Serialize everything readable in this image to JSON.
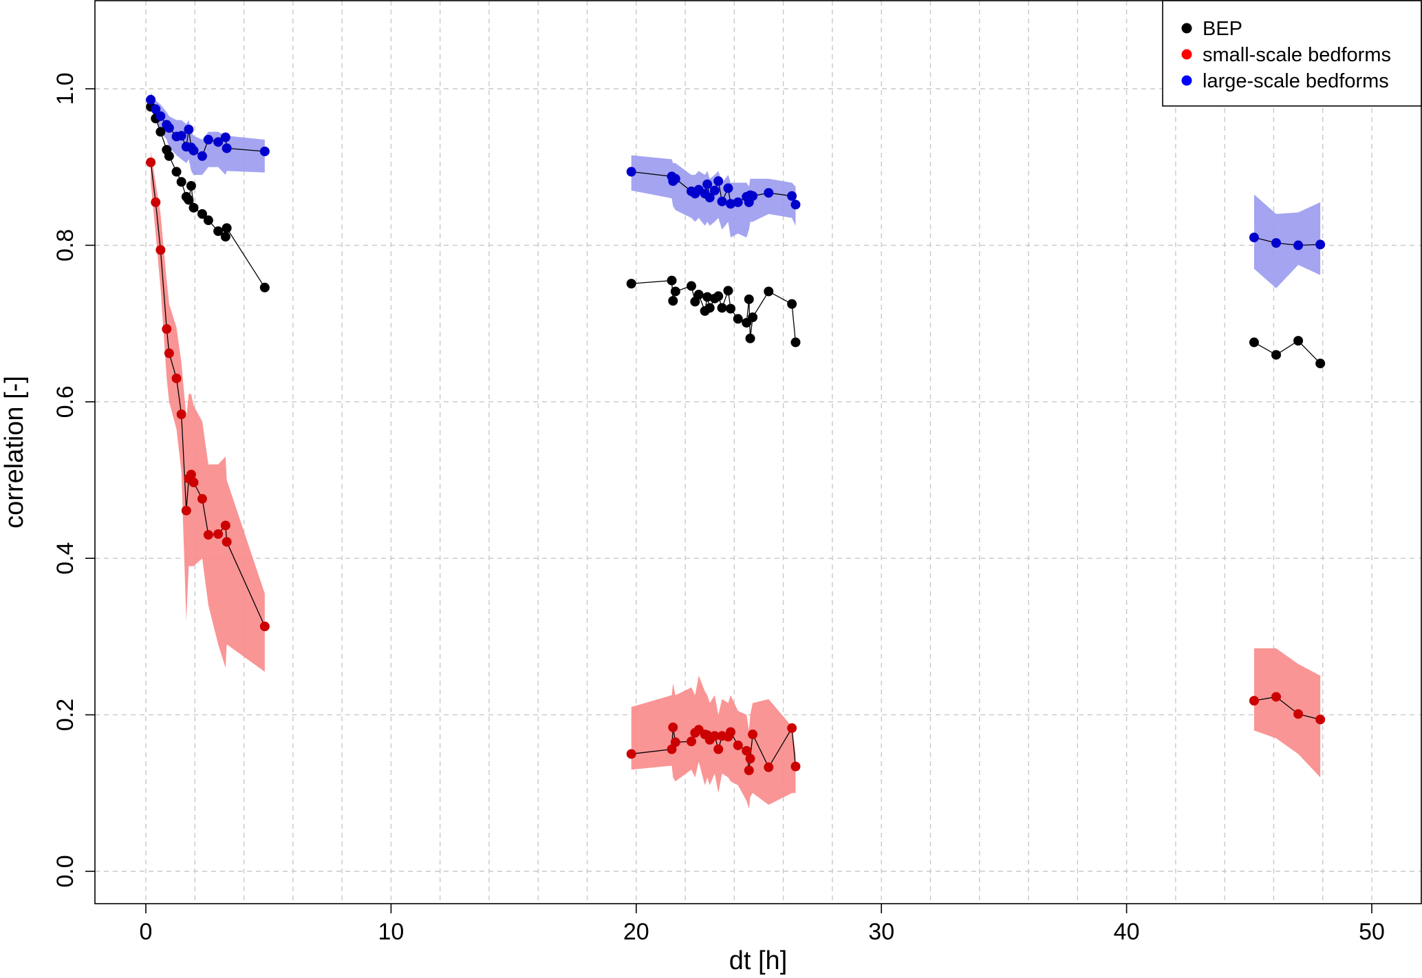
{
  "chart_data": {
    "type": "scatter",
    "title": "",
    "xlabel": "dt [h]",
    "ylabel": "correlation [-]",
    "xlim": [
      -2,
      52
    ],
    "ylim": [
      -0.04,
      1.11
    ],
    "x_ticks": [
      0,
      10,
      20,
      30,
      40,
      50
    ],
    "x_tick_labels": [
      "0",
      "10",
      "20",
      "30",
      "40",
      "50"
    ],
    "y_ticks": [
      0.0,
      0.2,
      0.4,
      0.6,
      0.8,
      1.0
    ],
    "y_tick_labels": [
      "0.0",
      "0.2",
      "0.4",
      "0.6",
      "0.8",
      "1.0"
    ],
    "x_grid": [
      0,
      2,
      4,
      6,
      8,
      10,
      12,
      14,
      16,
      18,
      20,
      22,
      24,
      26,
      28,
      30,
      32,
      34,
      36,
      38,
      40,
      42,
      44,
      46,
      48,
      50
    ],
    "y_grid": [
      0.0,
      0.2,
      0.4,
      0.6,
      0.8,
      1.0
    ],
    "grid": true,
    "legend_position": "top-right",
    "series": [
      {
        "name": "BEP",
        "color": "#000000",
        "band_color": null,
        "groups": [
          {
            "x": [
              0.2,
              0.4,
              0.6,
              0.85,
              0.95,
              1.25,
              1.45,
              1.65,
              1.75,
              1.85,
              1.95,
              2.3,
              2.55,
              2.95,
              3.25,
              3.3,
              4.85
            ],
            "y": [
              0.977,
              0.962,
              0.945,
              0.922,
              0.914,
              0.894,
              0.881,
              0.862,
              0.858,
              0.876,
              0.848,
              0.84,
              0.832,
              0.818,
              0.811,
              0.822,
              0.746
            ],
            "lower": [],
            "upper": []
          },
          {
            "x": [
              19.8,
              21.45,
              21.5,
              21.6,
              22.25,
              22.4,
              22.55,
              22.8,
              22.9,
              23.0,
              23.2,
              23.35,
              23.5,
              23.75,
              23.85,
              24.15,
              24.5,
              24.6,
              24.65,
              24.75,
              25.4,
              26.35,
              26.5
            ],
            "y": [
              0.751,
              0.755,
              0.729,
              0.741,
              0.748,
              0.728,
              0.737,
              0.716,
              0.734,
              0.72,
              0.732,
              0.735,
              0.72,
              0.742,
              0.719,
              0.706,
              0.701,
              0.731,
              0.681,
              0.708,
              0.741,
              0.725,
              0.676
            ],
            "lower": [],
            "upper": []
          },
          {
            "x": [
              45.2,
              46.1,
              47.0,
              47.9
            ],
            "y": [
              0.676,
              0.66,
              0.678,
              0.649
            ],
            "lower": [],
            "upper": []
          }
        ]
      },
      {
        "name": "small-scale bedforms",
        "color": "#CC0000",
        "band_color": "#FA8A8A",
        "groups": [
          {
            "x": [
              0.2,
              0.4,
              0.6,
              0.85,
              0.95,
              1.25,
              1.45,
              1.65,
              1.75,
              1.85,
              1.95,
              2.3,
              2.55,
              2.95,
              3.25,
              3.3,
              4.85
            ],
            "y": [
              0.906,
              0.855,
              0.794,
              0.693,
              0.662,
              0.63,
              0.584,
              0.461,
              0.502,
              0.507,
              0.497,
              0.476,
              0.43,
              0.431,
              0.442,
              0.421,
              0.313
            ],
            "lower": [
              0.88,
              0.815,
              0.745,
              0.63,
              0.6,
              0.565,
              0.51,
              0.32,
              0.39,
              0.39,
              0.39,
              0.4,
              0.34,
              0.29,
              0.26,
              0.29,
              0.255
            ],
            "upper": [
              0.92,
              0.88,
              0.84,
              0.755,
              0.725,
              0.695,
              0.65,
              0.58,
              0.61,
              0.61,
              0.595,
              0.575,
              0.52,
              0.52,
              0.53,
              0.5,
              0.355
            ]
          },
          {
            "x": [
              19.8,
              21.45,
              21.5,
              21.6,
              22.25,
              22.4,
              22.55,
              22.8,
              22.9,
              23.0,
              23.2,
              23.35,
              23.5,
              23.75,
              23.85,
              24.15,
              24.5,
              24.6,
              24.65,
              24.75,
              25.4,
              26.35,
              26.5
            ],
            "y": [
              0.15,
              0.156,
              0.184,
              0.165,
              0.166,
              0.177,
              0.181,
              0.175,
              0.174,
              0.168,
              0.173,
              0.156,
              0.173,
              0.172,
              0.178,
              0.161,
              0.154,
              0.129,
              0.144,
              0.175,
              0.133,
              0.183,
              0.134
            ],
            "lower": [
              0.13,
              0.135,
              0.12,
              0.115,
              0.13,
              0.12,
              0.14,
              0.11,
              0.12,
              0.11,
              0.125,
              0.1,
              0.125,
              0.12,
              0.115,
              0.11,
              0.09,
              0.08,
              0.095,
              0.1,
              0.085,
              0.1,
              0.1
            ],
            "upper": [
              0.21,
              0.225,
              0.24,
              0.225,
              0.235,
              0.225,
              0.25,
              0.23,
              0.225,
              0.215,
              0.225,
              0.2,
              0.22,
              0.215,
              0.225,
              0.205,
              0.2,
              0.18,
              0.2,
              0.215,
              0.22,
              0.185,
              0.15
            ]
          },
          {
            "x": [
              45.2,
              46.1,
              47.0,
              47.9
            ],
            "y": [
              0.218,
              0.223,
              0.201,
              0.194
            ],
            "lower": [
              0.18,
              0.17,
              0.15,
              0.12
            ],
            "upper": [
              0.285,
              0.285,
              0.265,
              0.25
            ]
          }
        ]
      },
      {
        "name": "large-scale bedforms",
        "color": "#0000CC",
        "band_color": "#9A9AF0",
        "groups": [
          {
            "x": [
              0.2,
              0.4,
              0.6,
              0.85,
              0.95,
              1.25,
              1.45,
              1.65,
              1.75,
              1.85,
              1.95,
              2.3,
              2.55,
              2.95,
              3.25,
              3.3,
              4.85
            ],
            "y": [
              0.986,
              0.974,
              0.965,
              0.954,
              0.95,
              0.939,
              0.94,
              0.926,
              0.948,
              0.925,
              0.921,
              0.914,
              0.935,
              0.932,
              0.938,
              0.924,
              0.92
            ],
            "lower": [
              0.975,
              0.96,
              0.945,
              0.935,
              0.925,
              0.915,
              0.91,
              0.905,
              0.91,
              0.895,
              0.89,
              0.89,
              0.9,
              0.9,
              0.89,
              0.895,
              0.893
            ],
            "upper": [
              0.995,
              0.985,
              0.98,
              0.97,
              0.965,
              0.96,
              0.96,
              0.955,
              0.96,
              0.945,
              0.94,
              0.935,
              0.945,
              0.945,
              0.94,
              0.94,
              0.935
            ]
          },
          {
            "x": [
              19.8,
              21.45,
              21.5,
              21.6,
              22.25,
              22.4,
              22.55,
              22.8,
              22.9,
              23.0,
              23.2,
              23.35,
              23.5,
              23.75,
              23.85,
              24.15,
              24.5,
              24.6,
              24.65,
              24.75,
              25.4,
              26.35,
              26.5
            ],
            "y": [
              0.894,
              0.888,
              0.882,
              0.885,
              0.869,
              0.866,
              0.871,
              0.866,
              0.878,
              0.861,
              0.87,
              0.882,
              0.856,
              0.873,
              0.853,
              0.855,
              0.862,
              0.855,
              0.864,
              0.863,
              0.867,
              0.863,
              0.852
            ],
            "lower": [
              0.87,
              0.86,
              0.85,
              0.845,
              0.835,
              0.83,
              0.835,
              0.825,
              0.83,
              0.825,
              0.83,
              0.835,
              0.82,
              0.83,
              0.81,
              0.815,
              0.81,
              0.82,
              0.83,
              0.83,
              0.84,
              0.835,
              0.825
            ],
            "upper": [
              0.915,
              0.91,
              0.905,
              0.905,
              0.89,
              0.89,
              0.895,
              0.89,
              0.895,
              0.885,
              0.89,
              0.895,
              0.88,
              0.89,
              0.88,
              0.88,
              0.88,
              0.875,
              0.885,
              0.885,
              0.885,
              0.88,
              0.875
            ]
          },
          {
            "x": [
              45.2,
              46.1,
              47.0,
              47.9
            ],
            "y": [
              0.81,
              0.803,
              0.8,
              0.801
            ],
            "lower": [
              0.77,
              0.745,
              0.775,
              0.762
            ],
            "upper": [
              0.865,
              0.84,
              0.842,
              0.855
            ]
          }
        ]
      }
    ]
  }
}
